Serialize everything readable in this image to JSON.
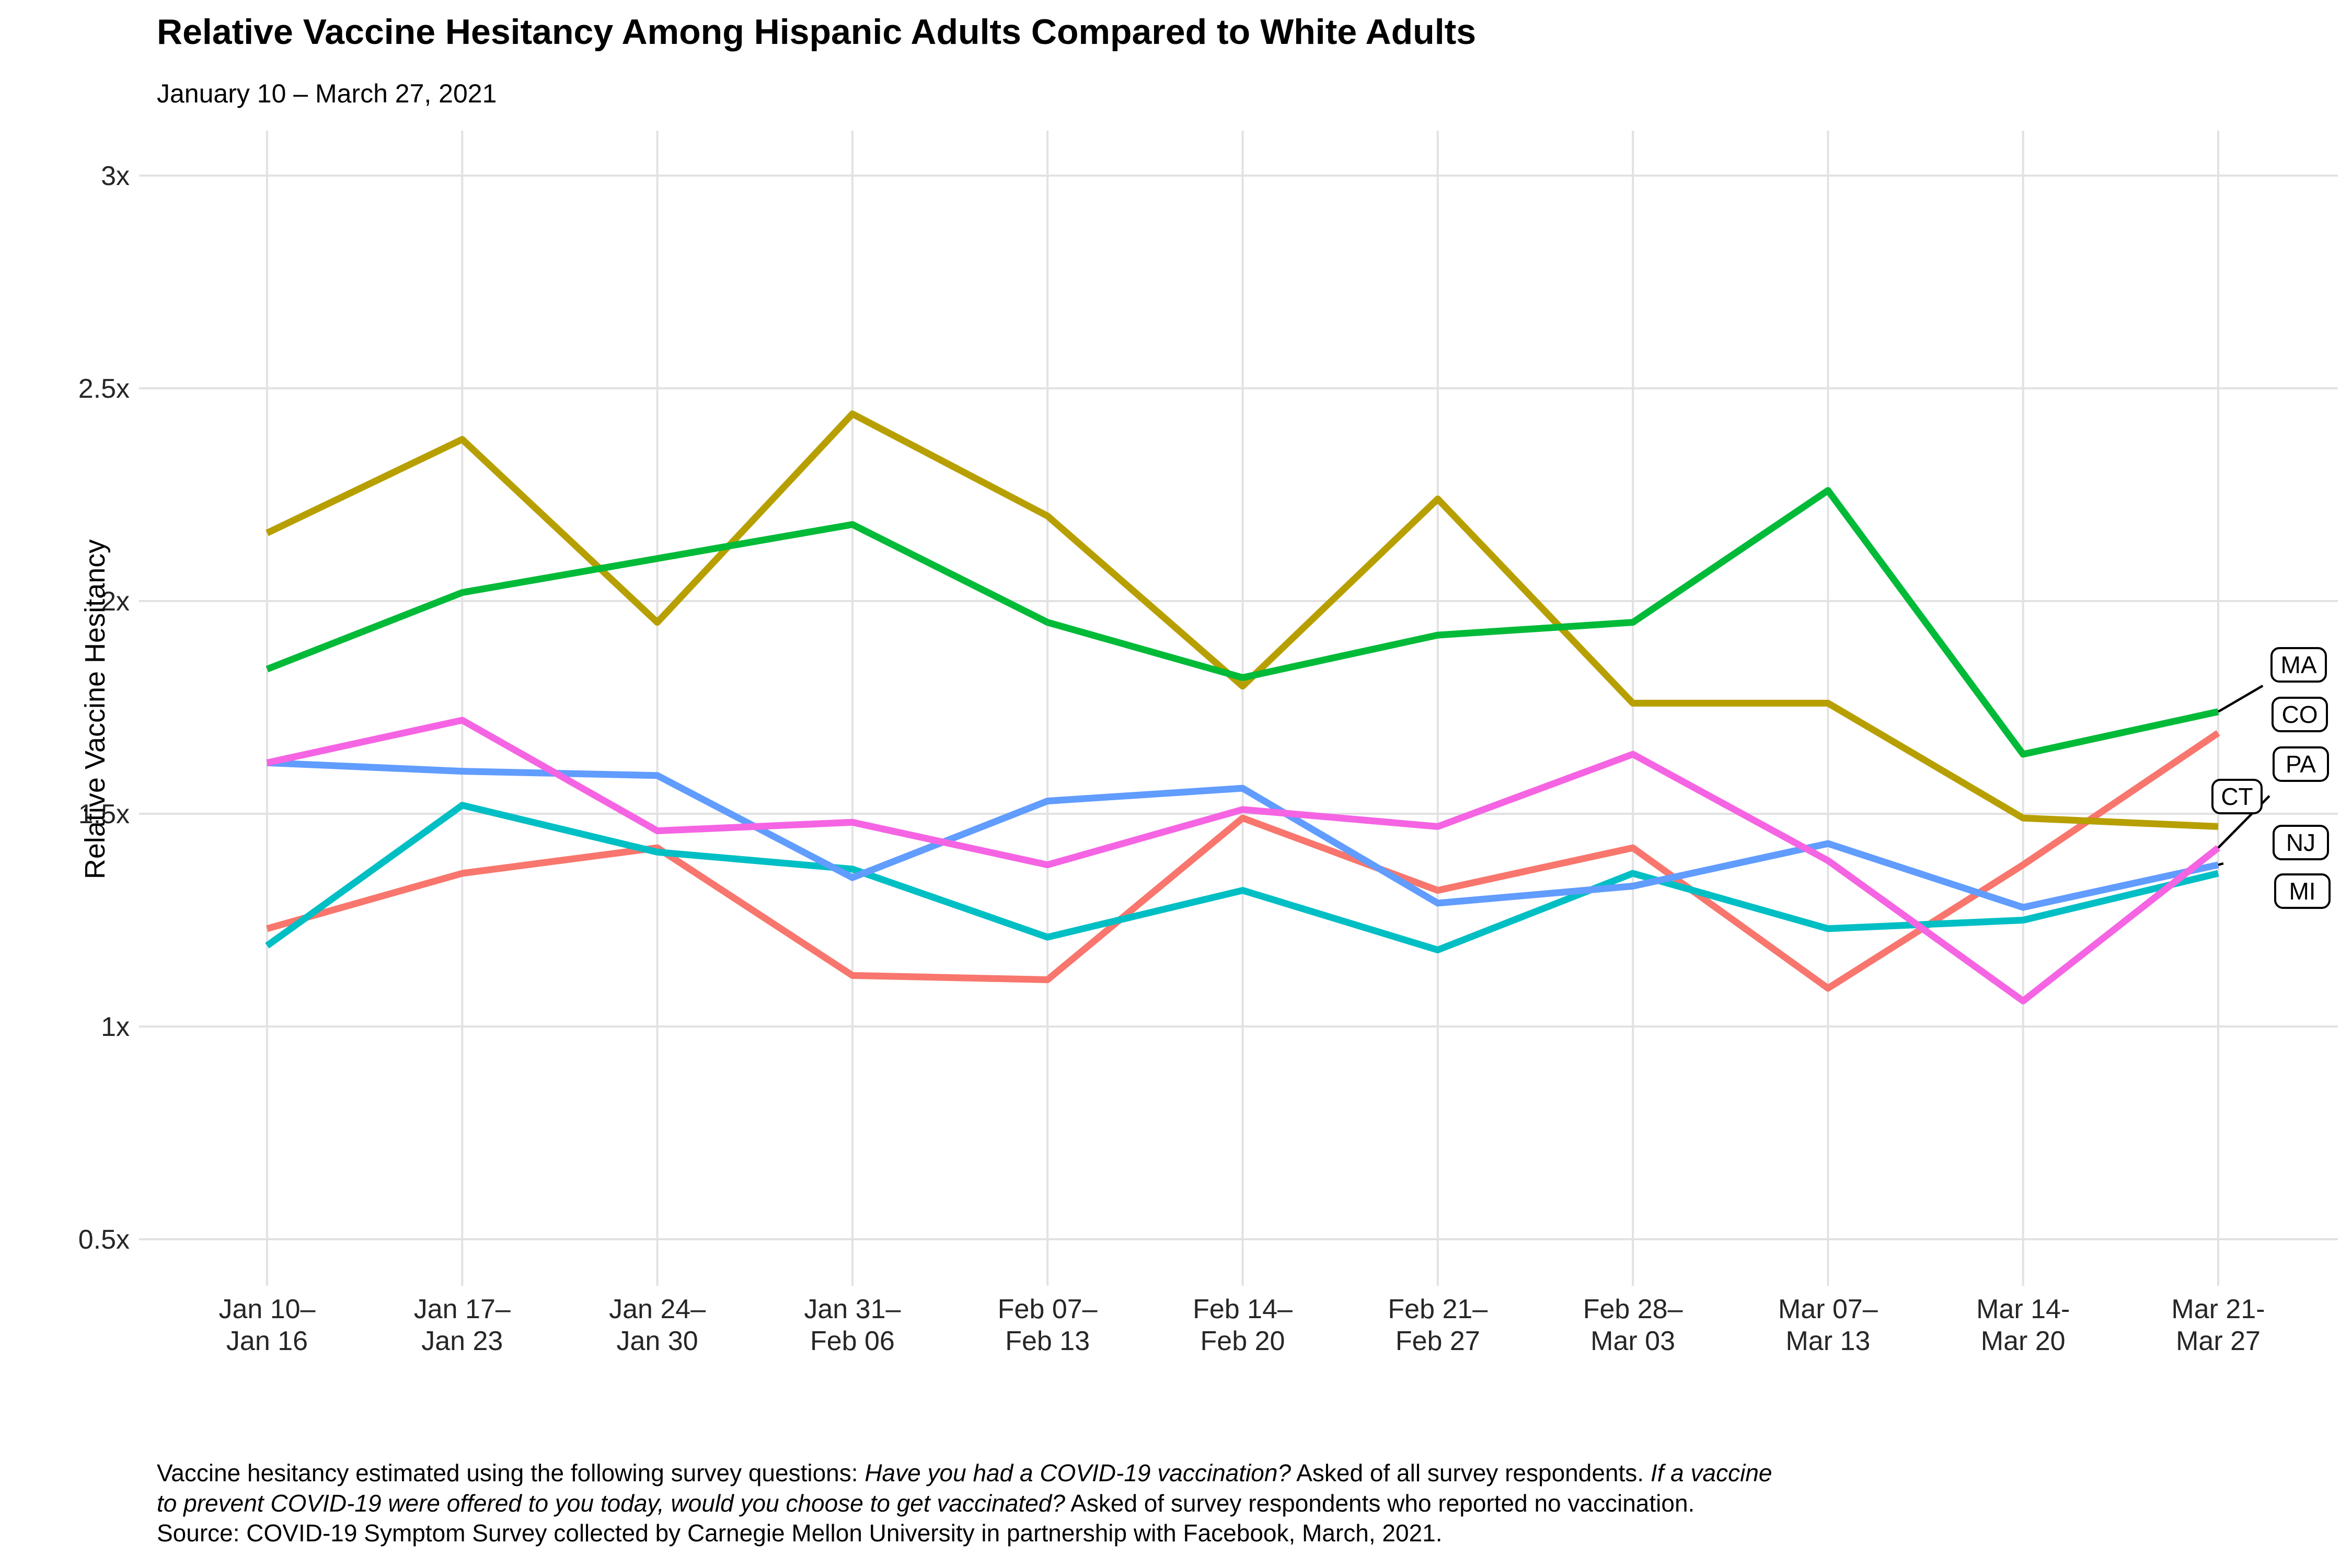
{
  "chart_data": {
    "type": "line",
    "title": "Relative Vaccine Hesitancy Among Hispanic Adults Compared to White Adults",
    "subtitle": "January 10 – March 27, 2021",
    "ylabel": "Relative Vaccine Hesitancy",
    "ylim": [
      0.39,
      3.1
    ],
    "grid": "major-only",
    "legend_position": "right-edge boxed labels with leader lines",
    "y_ticks": [
      {
        "label": "0.5x",
        "value": 0.5
      },
      {
        "label": "1x",
        "value": 1
      },
      {
        "label": "1.5x",
        "value": 1.5
      },
      {
        "label": "2x",
        "value": 2
      },
      {
        "label": "2.5x",
        "value": 2.5
      },
      {
        "label": "3x",
        "value": 3
      }
    ],
    "categories": [
      [
        "Jan 10–",
        "Jan 16"
      ],
      [
        "Jan 17–",
        "Jan 23"
      ],
      [
        "Jan 24–",
        "Jan 30"
      ],
      [
        "Jan 31–",
        "Feb 06"
      ],
      [
        "Feb 07–",
        "Feb 13"
      ],
      [
        "Feb 14–",
        "Feb 20"
      ],
      [
        "Feb 21–",
        "Feb 27"
      ],
      [
        "Feb 28–",
        "Mar 03"
      ],
      [
        "Mar 07–",
        "Mar 13"
      ],
      [
        "Mar 14-",
        "Mar 20"
      ],
      [
        "Mar 21-",
        "Mar 27"
      ]
    ],
    "series": [
      {
        "name": "CO",
        "color": "#F8766D",
        "values": [
          1.23,
          1.36,
          1.42,
          1.12,
          1.11,
          1.49,
          1.32,
          1.42,
          1.09,
          1.38,
          1.69
        ]
      },
      {
        "name": "CT",
        "color": "#B79F00",
        "values": [
          2.16,
          2.38,
          1.95,
          2.44,
          2.2,
          1.8,
          2.24,
          1.76,
          1.76,
          1.49,
          1.47
        ]
      },
      {
        "name": "MA",
        "color": "#00BA38",
        "values": [
          1.84,
          2.02,
          2.1,
          2.18,
          1.95,
          1.82,
          1.92,
          1.95,
          2.26,
          1.64,
          1.74
        ]
      },
      {
        "name": "MI",
        "color": "#00BFC4",
        "values": [
          1.19,
          1.52,
          1.41,
          1.37,
          1.21,
          1.32,
          1.18,
          1.36,
          1.23,
          1.25,
          1.36
        ]
      },
      {
        "name": "NJ",
        "color": "#619CFF",
        "values": [
          1.62,
          1.6,
          1.59,
          1.35,
          1.53,
          1.56,
          1.29,
          1.33,
          1.43,
          1.28,
          1.38
        ]
      },
      {
        "name": "PA",
        "color": "#F564E3",
        "values": [
          1.62,
          1.72,
          1.46,
          1.48,
          1.38,
          1.51,
          1.47,
          1.64,
          1.39,
          1.06,
          1.42
        ]
      }
    ],
    "colors": {
      "grid": "#E2E2E2",
      "leader": "#000000",
      "label_box_fill": "#FFFFFF",
      "label_box_border": "#000000"
    }
  },
  "footnote": {
    "lines": [
      [
        {
          "text": "Vaccine hesitancy estimated using the following survey questions: ",
          "italic": false
        },
        {
          "text": "Have you had a COVID-19 vaccination?",
          "italic": true
        },
        {
          "text": " Asked of all survey respondents. ",
          "italic": false
        },
        {
          "text": "If a vaccine",
          "italic": true
        }
      ],
      [
        {
          "text": "to prevent COVID-19 were offered to you today, would you choose to get vaccinated?",
          "italic": true
        },
        {
          "text": " Asked of survey respondents who reported no vaccination.",
          "italic": false
        }
      ],
      [
        {
          "text": "Source: COVID-19 Symptom Survey collected by Carnegie Mellon University in partnership with Facebook, March, 2021.",
          "italic": false
        }
      ]
    ]
  }
}
